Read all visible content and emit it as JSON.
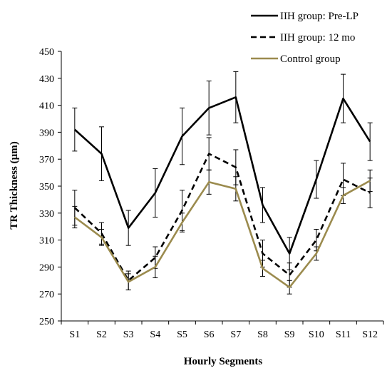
{
  "chart_data": {
    "type": "line",
    "title": "",
    "xlabel": "Hourly Segments",
    "ylabel": "TR Thickness (µm)",
    "ylim": [
      250,
      450
    ],
    "yticks": [
      250,
      270,
      290,
      310,
      330,
      350,
      370,
      390,
      410,
      430,
      450
    ],
    "categories": [
      "S1",
      "S2",
      "S3",
      "S4",
      "S5",
      "S6",
      "S7",
      "S8",
      "S9",
      "S10",
      "S11",
      "S12"
    ],
    "grid": false,
    "legend_position": "top-right",
    "series": [
      {
        "name": "IIH group: Pre-LP",
        "color": "#000000",
        "dash": "solid",
        "values": [
          392,
          374,
          319,
          345,
          387,
          408,
          416,
          336,
          300,
          355,
          415,
          383
        ],
        "error": [
          16,
          20,
          13,
          18,
          21,
          20,
          19,
          13,
          12,
          14,
          18,
          14
        ]
      },
      {
        "name": "IIH group: 12 mo",
        "color": "#000000",
        "dash": "dashed",
        "values": [
          334,
          315,
          280,
          297,
          332,
          374,
          364,
          300,
          284,
          310,
          355,
          345
        ],
        "error": [
          13,
          8,
          7,
          8,
          15,
          12,
          13,
          10,
          9,
          8,
          12,
          11
        ]
      },
      {
        "name": "Control group",
        "color": "#9b8b4e",
        "dash": "solid",
        "values": [
          327,
          312,
          279,
          290,
          323,
          353,
          348,
          289,
          275,
          300,
          343,
          354
        ],
        "error": [
          8,
          6,
          6,
          8,
          7,
          9,
          9,
          6,
          5,
          5,
          6,
          8
        ]
      }
    ]
  }
}
